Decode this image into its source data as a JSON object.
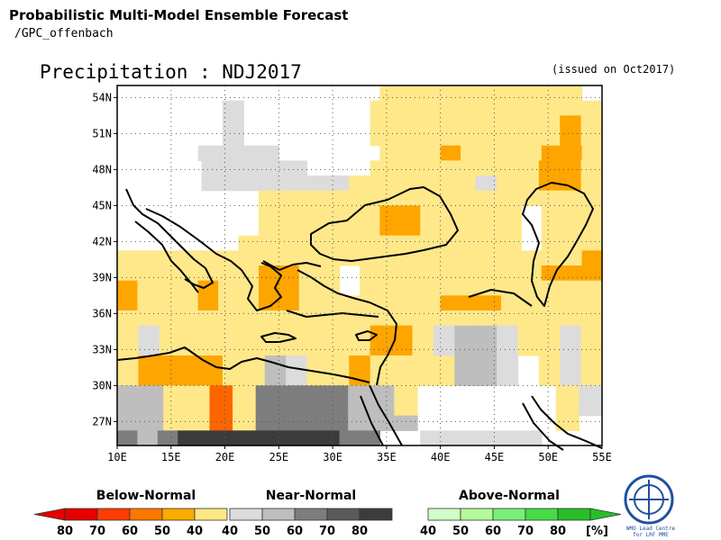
{
  "header": {
    "title": "Probabilistic Multi-Model Ensemble Forecast",
    "subtitle": "/GPC_offenbach",
    "main_title": "Precipitation : NDJ2017",
    "issued": "(issued on Oct2017)"
  },
  "map": {
    "lon_range": [
      10,
      55
    ],
    "lat_range": [
      25,
      55
    ],
    "x_ticks": [
      "10E",
      "15E",
      "20E",
      "25E",
      "30E",
      "35E",
      "40E",
      "45E",
      "50E",
      "55E"
    ],
    "y_ticks": [
      "54N",
      "51N",
      "48N",
      "45N",
      "42N",
      "39N",
      "36N",
      "33N",
      "30N",
      "27N"
    ],
    "grid_lines": true,
    "category_colors": {
      "W": "#ffffff",
      "Y": "#fee88a",
      "O": "#fea500",
      "R": "#fe6500",
      "g1": "#dcdcdc",
      "g2": "#bebebe",
      "g3": "#7d7d7d",
      "g4": "#3c3c3c",
      "G1": "#d2fec8",
      "G2": "#b4f6a0"
    },
    "rows": [
      "WWWWWWWWWWGWWYYYYYYYYYYW",
      "WGGWWg1WWWWWWYYYYYYYYYYY",
      "WGGWWg1WWWWWWYYYYYYYYYOY",
      "WGGWWg1WWWWWWYYYYYYYYYOY",
      "GGWWg1g1g1g1WWWWWYYYOYYYYOOY",
      "GGWWg1g1g1g1g1WWWYYYYYYYYOOY",
      "WWWWg1g1g1g1g1g1g1YYYYYYg1YYOOY",
      "WWWWWWWYYYYYYYYYYYYYYYYY",
      "WWWWWWWYYYYYYOOYYYYYWYYY",
      "WWWWWWWYYYYYYOOYYYYYWYYY",
      "WWWWWWYYYYYYYYYYYYYYWYYY",
      "YYYYYYYYYYYYYYYYYYYYYYYO",
      "YYYYYYYOOYYWYYYYYYYYYOOO",
      "OYYYOYYOOYYWYYYYYYYYYYYY",
      "OYYYOYYOOYYYYYYYOOOYYYYY",
      "YYYYYYYYYYYYYYYYYYYYYYYY",
      "Yg1YYYYYYYYYYOOYg1g2g2g1YYg1Y",
      "Yg1YYYYYYYYYYOOYg1g2g2g1YYg1Y",
      "YOOOOYYg2g1YYOYYYYg2g2g1WYg1Y",
      "YOOOOYYg2g1YYOYYYYg2g2g1WYg1Y",
      "g2g2YYRYg3g3g3g3g2g2YWWWWWWYg1",
      "g2g2YYRYg3g3g3g3g2g2YWWWWWWYg1",
      "g2g2YYRYg3g3g3g3g2g2g2WWWWWWYW",
      "g3g2g3g4g4g4g4g4g4g4g4g3g3WWg1g1g1g1g1g1WWW"
    ]
  },
  "legend": {
    "below": {
      "title": "Below-Normal",
      "labels": [
        "80",
        "70",
        "60",
        "50",
        "40"
      ],
      "colors": [
        "#e60000",
        "#fe3c00",
        "#fe7800",
        "#feaa00",
        "#fee882"
      ]
    },
    "near": {
      "title": "Near-Normal",
      "labels": [
        "40",
        "50",
        "60",
        "70",
        "80"
      ],
      "colors": [
        "#dcdcdc",
        "#bebebe",
        "#7d7d7d",
        "#5a5a5a",
        "#3c3c3c"
      ]
    },
    "above": {
      "title": "Above-Normal",
      "labels": [
        "40",
        "50",
        "60",
        "70",
        "80"
      ],
      "colors": [
        "#d2fec8",
        "#b4fa9b",
        "#78f078",
        "#46dc46",
        "#28be28"
      ]
    },
    "unit": "[%]"
  },
  "logo": {
    "text": "WMO Lead Centre for LRF MME"
  }
}
